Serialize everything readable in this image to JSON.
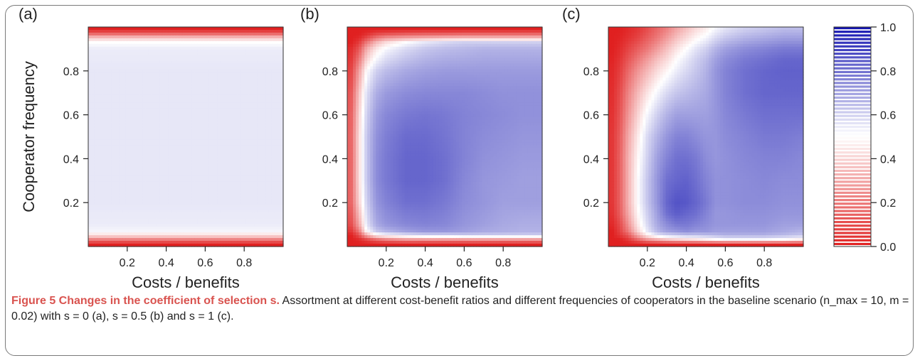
{
  "chart_data": [
    {
      "type": "heatmap",
      "panel_label": "(a)",
      "xlabel": "Costs / benefits",
      "ylabel": "Cooperator frequency",
      "xlim": [
        0,
        1
      ],
      "ylim": [
        0,
        1
      ],
      "xticks": [
        0.2,
        0.4,
        0.6,
        0.8
      ],
      "yticks": [
        0.2,
        0.4,
        0.6,
        0.8
      ],
      "x": [
        0.02,
        0.1,
        0.2,
        0.3,
        0.4,
        0.5,
        0.6,
        0.7,
        0.8,
        0.9,
        0.98
      ],
      "y": [
        0.01,
        0.03,
        0.05,
        0.07,
        0.1,
        0.2,
        0.3,
        0.4,
        0.5,
        0.6,
        0.7,
        0.8,
        0.9,
        0.93,
        0.95,
        0.97,
        0.99
      ],
      "z": [
        [
          0.0,
          0.0,
          0.0,
          0.0,
          0.0,
          0.0,
          0.0,
          0.0,
          0.0,
          0.0,
          0.0
        ],
        [
          0.2,
          0.2,
          0.2,
          0.2,
          0.2,
          0.2,
          0.2,
          0.2,
          0.2,
          0.2,
          0.2
        ],
        [
          0.42,
          0.42,
          0.42,
          0.42,
          0.42,
          0.42,
          0.42,
          0.42,
          0.42,
          0.42,
          0.42
        ],
        [
          0.52,
          0.52,
          0.52,
          0.52,
          0.52,
          0.52,
          0.52,
          0.52,
          0.52,
          0.52,
          0.52
        ],
        [
          0.54,
          0.54,
          0.54,
          0.54,
          0.54,
          0.54,
          0.54,
          0.54,
          0.54,
          0.54,
          0.54
        ],
        [
          0.55,
          0.55,
          0.55,
          0.55,
          0.55,
          0.55,
          0.55,
          0.55,
          0.55,
          0.55,
          0.55
        ],
        [
          0.55,
          0.55,
          0.55,
          0.55,
          0.55,
          0.55,
          0.55,
          0.55,
          0.55,
          0.55,
          0.55
        ],
        [
          0.55,
          0.55,
          0.55,
          0.55,
          0.55,
          0.55,
          0.55,
          0.55,
          0.55,
          0.55,
          0.55
        ],
        [
          0.55,
          0.55,
          0.55,
          0.55,
          0.55,
          0.55,
          0.55,
          0.55,
          0.55,
          0.55,
          0.55
        ],
        [
          0.55,
          0.55,
          0.55,
          0.55,
          0.55,
          0.55,
          0.55,
          0.55,
          0.55,
          0.55,
          0.55
        ],
        [
          0.55,
          0.55,
          0.55,
          0.55,
          0.55,
          0.55,
          0.55,
          0.55,
          0.55,
          0.55,
          0.55
        ],
        [
          0.55,
          0.55,
          0.55,
          0.55,
          0.55,
          0.55,
          0.55,
          0.55,
          0.55,
          0.55,
          0.55
        ],
        [
          0.54,
          0.54,
          0.54,
          0.54,
          0.54,
          0.54,
          0.54,
          0.54,
          0.54,
          0.54,
          0.54
        ],
        [
          0.5,
          0.5,
          0.5,
          0.5,
          0.5,
          0.5,
          0.5,
          0.5,
          0.5,
          0.5,
          0.5
        ],
        [
          0.38,
          0.38,
          0.38,
          0.38,
          0.38,
          0.38,
          0.38,
          0.38,
          0.38,
          0.38,
          0.38
        ],
        [
          0.15,
          0.15,
          0.15,
          0.15,
          0.15,
          0.15,
          0.15,
          0.15,
          0.15,
          0.15,
          0.15
        ],
        [
          0.0,
          0.0,
          0.0,
          0.0,
          0.0,
          0.0,
          0.0,
          0.0,
          0.0,
          0.0,
          0.0
        ]
      ]
    },
    {
      "type": "heatmap",
      "panel_label": "(b)",
      "xlabel": "Costs / benefits",
      "ylabel": "",
      "xlim": [
        0,
        1
      ],
      "ylim": [
        0,
        1
      ],
      "xticks": [
        0.2,
        0.4,
        0.6,
        0.8
      ],
      "yticks": [
        0.2,
        0.4,
        0.6,
        0.8
      ],
      "x": [
        0.02,
        0.06,
        0.1,
        0.15,
        0.2,
        0.3,
        0.4,
        0.5,
        0.6,
        0.7,
        0.8,
        0.9,
        0.98
      ],
      "y": [
        0.01,
        0.03,
        0.05,
        0.07,
        0.1,
        0.2,
        0.3,
        0.4,
        0.5,
        0.6,
        0.7,
        0.8,
        0.9,
        0.93,
        0.95,
        0.97,
        0.99
      ],
      "z": [
        [
          0.0,
          0.0,
          0.0,
          0.0,
          0.0,
          0.0,
          0.0,
          0.0,
          0.0,
          0.0,
          0.0,
          0.0,
          0.0
        ],
        [
          0.0,
          0.02,
          0.08,
          0.15,
          0.2,
          0.25,
          0.25,
          0.25,
          0.25,
          0.25,
          0.25,
          0.25,
          0.25
        ],
        [
          0.0,
          0.1,
          0.3,
          0.45,
          0.5,
          0.55,
          0.58,
          0.58,
          0.6,
          0.6,
          0.6,
          0.6,
          0.6
        ],
        [
          0.05,
          0.2,
          0.5,
          0.62,
          0.66,
          0.7,
          0.72,
          0.72,
          0.7,
          0.68,
          0.67,
          0.66,
          0.66
        ],
        [
          0.1,
          0.3,
          0.56,
          0.68,
          0.72,
          0.75,
          0.76,
          0.75,
          0.72,
          0.7,
          0.68,
          0.67,
          0.67
        ],
        [
          0.15,
          0.4,
          0.6,
          0.72,
          0.76,
          0.8,
          0.8,
          0.78,
          0.74,
          0.72,
          0.7,
          0.7,
          0.7
        ],
        [
          0.15,
          0.42,
          0.62,
          0.74,
          0.78,
          0.82,
          0.82,
          0.8,
          0.75,
          0.72,
          0.71,
          0.7,
          0.7
        ],
        [
          0.15,
          0.42,
          0.62,
          0.74,
          0.78,
          0.82,
          0.82,
          0.8,
          0.76,
          0.73,
          0.72,
          0.71,
          0.71
        ],
        [
          0.15,
          0.42,
          0.62,
          0.73,
          0.77,
          0.81,
          0.81,
          0.79,
          0.76,
          0.74,
          0.73,
          0.72,
          0.72
        ],
        [
          0.14,
          0.4,
          0.6,
          0.71,
          0.75,
          0.78,
          0.79,
          0.78,
          0.76,
          0.75,
          0.74,
          0.73,
          0.73
        ],
        [
          0.12,
          0.36,
          0.57,
          0.67,
          0.71,
          0.74,
          0.75,
          0.75,
          0.75,
          0.74,
          0.73,
          0.73,
          0.73
        ],
        [
          0.08,
          0.28,
          0.5,
          0.6,
          0.64,
          0.68,
          0.7,
          0.71,
          0.71,
          0.71,
          0.71,
          0.71,
          0.71
        ],
        [
          0.03,
          0.12,
          0.32,
          0.45,
          0.52,
          0.58,
          0.62,
          0.64,
          0.65,
          0.66,
          0.66,
          0.66,
          0.66
        ],
        [
          0.0,
          0.06,
          0.2,
          0.34,
          0.42,
          0.5,
          0.55,
          0.58,
          0.6,
          0.6,
          0.6,
          0.6,
          0.6
        ],
        [
          0.0,
          0.02,
          0.1,
          0.2,
          0.26,
          0.3,
          0.32,
          0.34,
          0.35,
          0.35,
          0.35,
          0.35,
          0.35
        ],
        [
          0.0,
          0.0,
          0.03,
          0.08,
          0.1,
          0.12,
          0.13,
          0.13,
          0.14,
          0.14,
          0.14,
          0.14,
          0.14
        ],
        [
          0.0,
          0.0,
          0.0,
          0.0,
          0.0,
          0.0,
          0.0,
          0.0,
          0.0,
          0.0,
          0.0,
          0.0,
          0.0
        ]
      ]
    },
    {
      "type": "heatmap",
      "panel_label": "(c)",
      "xlabel": "Costs / benefits",
      "ylabel": "",
      "xlim": [
        0,
        1
      ],
      "ylim": [
        0,
        1
      ],
      "xticks": [
        0.2,
        0.4,
        0.6,
        0.8
      ],
      "yticks": [
        0.2,
        0.4,
        0.6,
        0.8
      ],
      "x": [
        0.02,
        0.06,
        0.1,
        0.15,
        0.2,
        0.25,
        0.3,
        0.35,
        0.4,
        0.45,
        0.5,
        0.55,
        0.6,
        0.7,
        0.8,
        0.9,
        0.98
      ],
      "y": [
        0.01,
        0.03,
        0.05,
        0.07,
        0.1,
        0.15,
        0.2,
        0.3,
        0.4,
        0.5,
        0.6,
        0.7,
        0.8,
        0.85,
        0.9,
        0.95,
        0.99
      ],
      "z": [
        [
          0.0,
          0.0,
          0.0,
          0.0,
          0.0,
          0.0,
          0.0,
          0.0,
          0.0,
          0.0,
          0.0,
          0.0,
          0.0,
          0.0,
          0.0,
          0.0,
          0.0
        ],
        [
          0.0,
          0.0,
          0.05,
          0.15,
          0.25,
          0.3,
          0.35,
          0.38,
          0.4,
          0.42,
          0.45,
          0.48,
          0.5,
          0.5,
          0.5,
          0.48,
          0.45
        ],
        [
          0.0,
          0.05,
          0.12,
          0.3,
          0.45,
          0.55,
          0.58,
          0.6,
          0.62,
          0.62,
          0.63,
          0.64,
          0.66,
          0.66,
          0.66,
          0.64,
          0.62
        ],
        [
          0.0,
          0.08,
          0.2,
          0.4,
          0.55,
          0.65,
          0.7,
          0.72,
          0.74,
          0.72,
          0.72,
          0.7,
          0.7,
          0.7,
          0.7,
          0.68,
          0.66
        ],
        [
          0.02,
          0.1,
          0.25,
          0.45,
          0.58,
          0.68,
          0.74,
          0.78,
          0.78,
          0.76,
          0.74,
          0.72,
          0.72,
          0.72,
          0.72,
          0.7,
          0.7
        ],
        [
          0.04,
          0.14,
          0.3,
          0.48,
          0.6,
          0.7,
          0.8,
          0.84,
          0.82,
          0.8,
          0.76,
          0.72,
          0.72,
          0.73,
          0.73,
          0.72,
          0.72
        ],
        [
          0.05,
          0.15,
          0.32,
          0.5,
          0.62,
          0.72,
          0.82,
          0.86,
          0.85,
          0.82,
          0.78,
          0.73,
          0.73,
          0.74,
          0.74,
          0.73,
          0.73
        ],
        [
          0.05,
          0.15,
          0.32,
          0.5,
          0.62,
          0.72,
          0.8,
          0.82,
          0.83,
          0.8,
          0.76,
          0.73,
          0.73,
          0.74,
          0.75,
          0.74,
          0.74
        ],
        [
          0.05,
          0.15,
          0.32,
          0.48,
          0.6,
          0.7,
          0.76,
          0.8,
          0.8,
          0.78,
          0.74,
          0.72,
          0.73,
          0.75,
          0.76,
          0.76,
          0.75
        ],
        [
          0.05,
          0.14,
          0.3,
          0.45,
          0.58,
          0.66,
          0.72,
          0.76,
          0.76,
          0.74,
          0.72,
          0.72,
          0.74,
          0.76,
          0.78,
          0.78,
          0.77
        ],
        [
          0.04,
          0.12,
          0.26,
          0.4,
          0.52,
          0.6,
          0.66,
          0.7,
          0.7,
          0.7,
          0.7,
          0.72,
          0.75,
          0.78,
          0.8,
          0.8,
          0.8
        ],
        [
          0.03,
          0.1,
          0.22,
          0.34,
          0.44,
          0.52,
          0.58,
          0.62,
          0.64,
          0.66,
          0.68,
          0.72,
          0.76,
          0.8,
          0.82,
          0.82,
          0.82
        ],
        [
          0.02,
          0.07,
          0.16,
          0.26,
          0.34,
          0.42,
          0.48,
          0.54,
          0.58,
          0.62,
          0.66,
          0.72,
          0.76,
          0.8,
          0.82,
          0.83,
          0.83
        ],
        [
          0.01,
          0.05,
          0.12,
          0.2,
          0.28,
          0.36,
          0.42,
          0.5,
          0.55,
          0.6,
          0.64,
          0.7,
          0.74,
          0.78,
          0.8,
          0.82,
          0.82
        ],
        [
          0.0,
          0.03,
          0.08,
          0.14,
          0.2,
          0.28,
          0.36,
          0.44,
          0.5,
          0.56,
          0.6,
          0.66,
          0.7,
          0.74,
          0.76,
          0.78,
          0.78
        ],
        [
          0.0,
          0.01,
          0.04,
          0.08,
          0.14,
          0.2,
          0.28,
          0.36,
          0.42,
          0.48,
          0.52,
          0.58,
          0.62,
          0.66,
          0.68,
          0.7,
          0.7
        ],
        [
          0.0,
          0.0,
          0.02,
          0.05,
          0.1,
          0.16,
          0.22,
          0.3,
          0.36,
          0.42,
          0.46,
          0.52,
          0.56,
          0.6,
          0.62,
          0.64,
          0.64
        ]
      ]
    }
  ],
  "colorbar": {
    "range": [
      0,
      1
    ],
    "ticks": [
      "0.0",
      "0.2",
      "0.4",
      "0.6",
      "0.8",
      "1.0"
    ],
    "low_color": "#e02020",
    "mid_color": "#ffffff",
    "high_color": "#1010b0"
  },
  "caption": {
    "title": "Figure 5 Changes in the coefficient of selection s.",
    "text": " Assortment at different cost-benefit ratios and different frequencies of cooperators in the baseline scenario (n_max = 10, m = 0.02) with s = 0 (a), s = 0.5 (b) and s = 1 (c)."
  }
}
